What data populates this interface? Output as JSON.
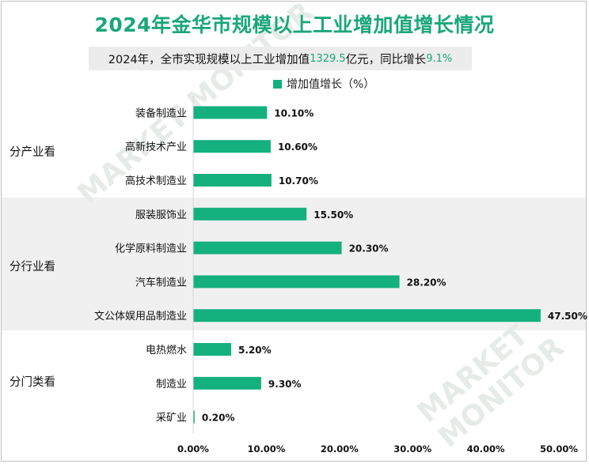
{
  "title": "2024年金华市规模以上工业增加值增长情况",
  "subtitle": {
    "prefix": "2024年，全市实现规模以上工业增加值",
    "value": "1329.5",
    "middle": "亿元，同比增长",
    "growth": "9.1%"
  },
  "legend": {
    "label": "增加值增长（%）",
    "color": "#14b07e"
  },
  "groups": [
    "分产业看",
    "分行业看",
    "分门类看"
  ],
  "chart_data": {
    "type": "bar",
    "orientation": "horizontal",
    "categories": [
      "装备制造业",
      "高新技术产业",
      "高技术制造业",
      "服装服饰业",
      "化学原料制造业",
      "汽车制造业",
      "文公体娱用品制造业",
      "电热燃水",
      "制造业",
      "采矿业"
    ],
    "category_groups": [
      "分产业看",
      "分产业看",
      "分产业看",
      "分行业看",
      "分行业看",
      "分行业看",
      "分行业看",
      "分门类看",
      "分门类看",
      "分门类看"
    ],
    "series": [
      {
        "name": "增加值增长（%）",
        "values": [
          10.1,
          10.6,
          10.7,
          15.5,
          20.3,
          28.2,
          47.5,
          5.2,
          9.3,
          0.2
        ]
      }
    ],
    "value_labels": [
      "10.10%",
      "10.60%",
      "10.70%",
      "15.50%",
      "20.30%",
      "28.20%",
      "47.50%",
      "5.20%",
      "9.30%",
      "0.20%"
    ],
    "xlim": [
      0,
      50
    ],
    "x_ticks": [
      "0.00%",
      "10.00%",
      "20.00%",
      "30.00%",
      "40.00%",
      "50.00%"
    ],
    "legend_position": "top",
    "bar_color": "#14b07e",
    "grid": false
  }
}
